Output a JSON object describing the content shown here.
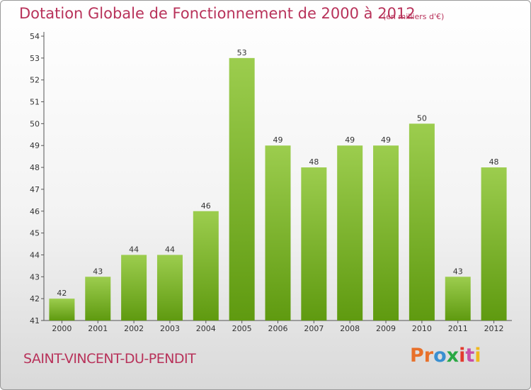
{
  "chart_data": {
    "type": "bar",
    "title": "Dotation Globale de Fonctionnement de 2000 à 2012",
    "subtitle": "(en milliers d'€)",
    "categories": [
      "2000",
      "2001",
      "2002",
      "2003",
      "2004",
      "2005",
      "2006",
      "2007",
      "2008",
      "2009",
      "2010",
      "2011",
      "2012"
    ],
    "values": [
      42,
      43,
      44,
      44,
      46,
      53,
      49,
      48,
      49,
      49,
      50,
      43,
      48
    ],
    "ylim": [
      41,
      54
    ],
    "yticks": [
      41,
      42,
      43,
      44,
      45,
      46,
      47,
      48,
      49,
      50,
      51,
      52,
      53,
      54
    ],
    "grid": false,
    "bar_color_top": "#9ccd4e",
    "bar_color_bottom": "#5f9a10"
  },
  "footer": {
    "commune": "SAINT-VINCENT-DU-PENDIT",
    "logo_parts": [
      "Pr",
      "o",
      "x",
      "i",
      "t",
      "i"
    ]
  },
  "colors": {
    "title": "#b8325a"
  }
}
